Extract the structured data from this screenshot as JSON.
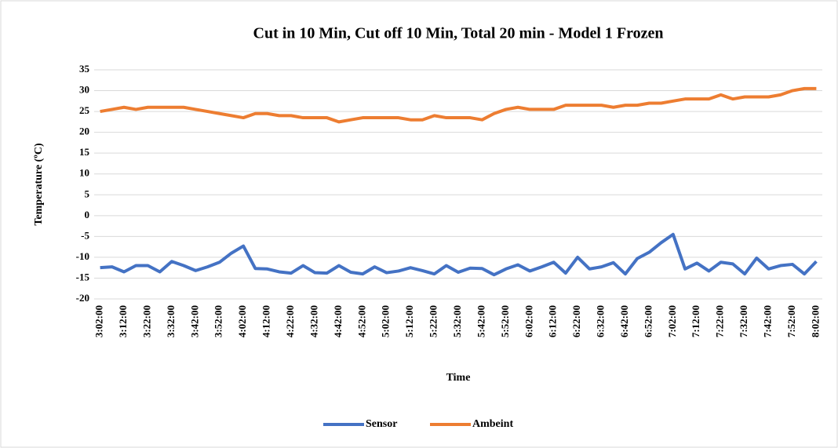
{
  "chart_data": {
    "type": "line",
    "title": "Cut in 10 Min, Cut off 10 Min, Total 20 min - Model 1 Frozen",
    "x_label": "Time",
    "y_label": "Temperature (ºC)",
    "categories": [
      "3:02:00",
      null,
      "3:12:00",
      null,
      "3:22:00",
      null,
      "3:32:00",
      null,
      "3:42:00",
      null,
      "3:52:00",
      null,
      "4:02:00",
      null,
      "4:12:00",
      null,
      "4:22:00",
      null,
      "4:32:00",
      null,
      "4:42:00",
      null,
      "4:52:00",
      null,
      "5:02:00",
      null,
      "5:12:00",
      null,
      "5:22:00",
      null,
      "5:32:00",
      null,
      "5:42:00",
      null,
      "5:52:00",
      null,
      "6:02:00",
      null,
      "6:12:00",
      null,
      "6:22:00",
      null,
      "6:32:00",
      null,
      "6:42:00",
      null,
      "6:52:00",
      null,
      "7:02:00",
      null,
      "7:12:00",
      null,
      "7:22:00",
      null,
      "7:32:00",
      null,
      "7:42:00",
      null,
      "7:52:00",
      null,
      "8:02:00"
    ],
    "series": [
      {
        "name": "Sensor",
        "color": "#4472c4",
        "values": [
          -12.5,
          -12.3,
          -13.5,
          -12,
          -12,
          -13.5,
          -11,
          -12,
          -13.2,
          -12.3,
          -11.2,
          -9,
          -7.3,
          -12.7,
          -12.8,
          -13.5,
          -13.8,
          -12,
          -13.7,
          -13.8,
          -12,
          -13.6,
          -14,
          -12.3,
          -13.7,
          -13.3,
          -12.5,
          -13.2,
          -14,
          -12,
          -13.6,
          -12.6,
          -12.7,
          -14.2,
          -12.8,
          -11.8,
          -13.3,
          -12.3,
          -11.2,
          -13.8,
          -10,
          -12.8,
          -12.3,
          -11.3,
          -14,
          -10.3,
          -8.8,
          -6.5,
          -4.5,
          -12.8,
          -11.4,
          -13.3,
          -11.2,
          -11.6,
          -14,
          -10.2,
          -12.8,
          -12,
          -11.7,
          -14,
          -11
        ]
      },
      {
        "name": "Ambeint",
        "color": "#ed7d31",
        "values": [
          25,
          25.5,
          26,
          25.5,
          26,
          26,
          26,
          26,
          25.5,
          25,
          24.5,
          24,
          23.5,
          24.5,
          24.5,
          24,
          24,
          23.5,
          23.5,
          23.5,
          22.5,
          23,
          23.5,
          23.5,
          23.5,
          23.5,
          23,
          23,
          24,
          23.5,
          23.5,
          23.5,
          23,
          24.5,
          25.5,
          26,
          25.5,
          25.5,
          25.5,
          26.5,
          26.5,
          26.5,
          26.5,
          26,
          26.5,
          26.5,
          27,
          27,
          27.5,
          28,
          28,
          28,
          29,
          28,
          28.5,
          28.5,
          28.5,
          29,
          30,
          30.5,
          30.5
        ]
      }
    ],
    "ylim": [
      -20,
      35
    ],
    "yticks": [
      -20,
      -15,
      -10,
      -5,
      0,
      5,
      10,
      15,
      20,
      25,
      30,
      35
    ],
    "grid": true,
    "legend": "bottom"
  }
}
